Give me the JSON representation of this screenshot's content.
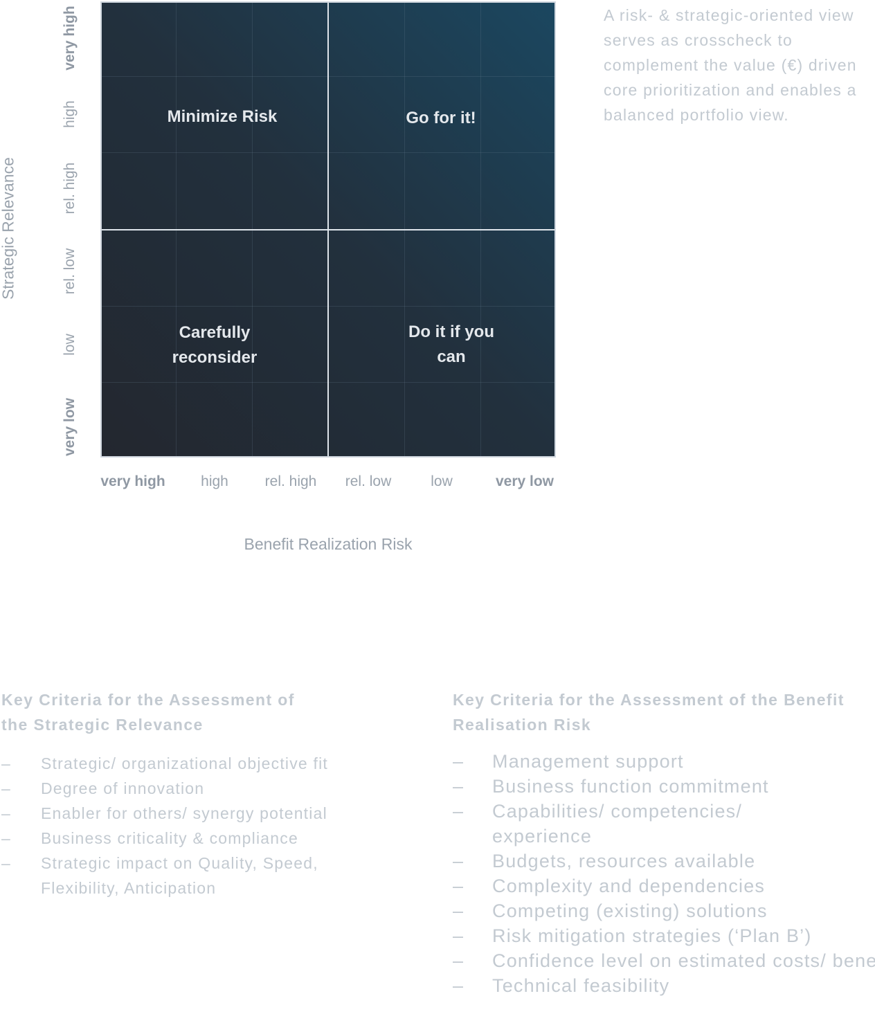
{
  "matrix": {
    "x_axis_title": "Benefit Realization Risk",
    "y_axis_title": "Strategic Relevance",
    "x_ticks": [
      "very high",
      "high",
      "rel. high",
      "rel. low",
      "low",
      "very low"
    ],
    "y_ticks": [
      "very high",
      "high",
      "rel. high",
      "rel. low",
      "low",
      "very low"
    ],
    "quadrants": {
      "top_left": "Minimize Risk",
      "top_right": "Go for it!",
      "bottom_left": "Carefully\nreconsider",
      "bottom_right": "Do it if you can"
    }
  },
  "side_note": "A risk- & strategic-oriented view serves as crosscheck to complement the value (€) driven core prioritization and enables a balanced portfolio view.",
  "criteria_left": {
    "title": "Key Criteria for the Assessment of the Strategic Relevance",
    "items": [
      "Strategic/ organizational objective fit",
      "Degree of innovation",
      "Enabler for others/ synergy potential",
      "Business criticality & compliance",
      "Strategic impact on Quality, Speed, Flexibility, Anticipation"
    ]
  },
  "criteria_right": {
    "title": "Key Criteria for the Assessment of the Benefit Realisation Risk",
    "items": [
      "Management support",
      "Business function commitment",
      "Capabilities/ competencies/ experience",
      "Budgets, resources available",
      "Complexity and dependencies",
      "Competing (existing) solutions",
      "Risk mitigation strategies (‘Plan B’)",
      "Confidence level on estimated costs/ benefits",
      "Technical feasibility"
    ]
  },
  "list_marker": "–"
}
